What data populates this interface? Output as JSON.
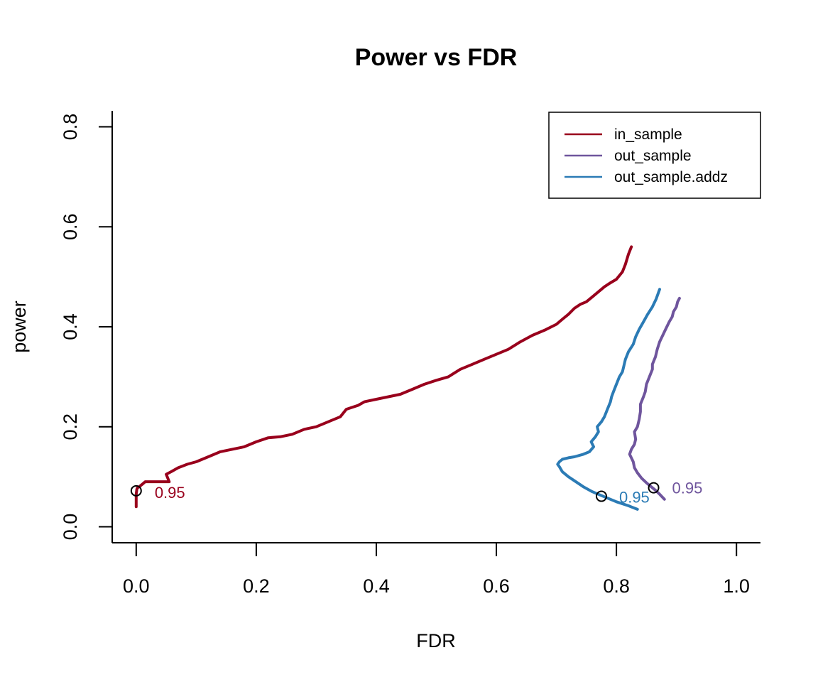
{
  "chart_data": {
    "type": "line",
    "title": "Power vs FDR",
    "xlabel": "FDR",
    "ylabel": "power",
    "xlim": [
      -0.04,
      1.04
    ],
    "ylim": [
      -0.032,
      0.832
    ],
    "xticks": [
      0.0,
      0.2,
      0.4,
      0.6,
      0.8,
      1.0
    ],
    "xtick_labels": [
      "0.0",
      "0.2",
      "0.4",
      "0.6",
      "0.8",
      "1.0"
    ],
    "yticks": [
      0.0,
      0.2,
      0.4,
      0.6,
      0.8
    ],
    "ytick_labels": [
      "0.0",
      "0.2",
      "0.4",
      "0.6",
      "0.8"
    ],
    "legend_position": "top-right",
    "series": [
      {
        "name": "in_sample",
        "color": "#99001C",
        "x": [
          0.0,
          0.0,
          0.001,
          0.002,
          0.005,
          0.01,
          0.015,
          0.02,
          0.03,
          0.045,
          0.055,
          0.05,
          0.058,
          0.07,
          0.085,
          0.1,
          0.12,
          0.14,
          0.16,
          0.18,
          0.2,
          0.22,
          0.24,
          0.26,
          0.28,
          0.3,
          0.32,
          0.34,
          0.35,
          0.37,
          0.38,
          0.4,
          0.42,
          0.44,
          0.46,
          0.48,
          0.5,
          0.52,
          0.54,
          0.56,
          0.58,
          0.6,
          0.62,
          0.64,
          0.66,
          0.68,
          0.7,
          0.71,
          0.72,
          0.73,
          0.74,
          0.75,
          0.76,
          0.77,
          0.78,
          0.79,
          0.8,
          0.81,
          0.815,
          0.82,
          0.825
        ],
        "y": [
          0.04,
          0.065,
          0.075,
          0.078,
          0.08,
          0.085,
          0.09,
          0.09,
          0.09,
          0.09,
          0.09,
          0.105,
          0.11,
          0.118,
          0.125,
          0.13,
          0.14,
          0.15,
          0.155,
          0.16,
          0.17,
          0.178,
          0.18,
          0.185,
          0.195,
          0.2,
          0.21,
          0.22,
          0.235,
          0.243,
          0.25,
          0.255,
          0.26,
          0.265,
          0.275,
          0.285,
          0.293,
          0.3,
          0.315,
          0.325,
          0.335,
          0.345,
          0.355,
          0.37,
          0.383,
          0.393,
          0.405,
          0.415,
          0.425,
          0.437,
          0.445,
          0.45,
          0.46,
          0.47,
          0.48,
          0.488,
          0.495,
          0.51,
          0.525,
          0.545,
          0.56
        ],
        "marker": {
          "x": 0.0,
          "y": 0.072,
          "label": "0.95"
        }
      },
      {
        "name": "out_sample",
        "color": "#6F559D",
        "x": [
          0.88,
          0.872,
          0.865,
          0.858,
          0.85,
          0.842,
          0.835,
          0.83,
          0.828,
          0.822,
          0.825,
          0.83,
          0.832,
          0.83,
          0.835,
          0.838,
          0.84,
          0.84,
          0.845,
          0.848,
          0.85,
          0.855,
          0.86,
          0.86,
          0.865,
          0.868,
          0.872,
          0.878,
          0.882,
          0.888,
          0.893,
          0.895,
          0.9,
          0.902,
          0.905
        ],
        "y": [
          0.055,
          0.065,
          0.073,
          0.08,
          0.088,
          0.097,
          0.108,
          0.118,
          0.13,
          0.145,
          0.155,
          0.165,
          0.175,
          0.19,
          0.2,
          0.215,
          0.23,
          0.245,
          0.26,
          0.27,
          0.285,
          0.3,
          0.315,
          0.325,
          0.34,
          0.355,
          0.37,
          0.385,
          0.395,
          0.41,
          0.42,
          0.43,
          0.44,
          0.45,
          0.457
        ],
        "marker": {
          "x": 0.862,
          "y": 0.078,
          "label": "0.95"
        }
      },
      {
        "name": "out_sample.addz",
        "color": "#2B7BB5",
        "x": [
          0.835,
          0.82,
          0.8,
          0.78,
          0.76,
          0.745,
          0.73,
          0.72,
          0.71,
          0.705,
          0.702,
          0.705,
          0.71,
          0.72,
          0.73,
          0.745,
          0.755,
          0.762,
          0.758,
          0.765,
          0.77,
          0.768,
          0.775,
          0.78,
          0.785,
          0.79,
          0.792,
          0.795,
          0.8,
          0.805,
          0.81,
          0.812,
          0.815,
          0.82,
          0.828,
          0.832,
          0.838,
          0.845,
          0.852,
          0.86,
          0.866,
          0.872
        ],
        "y": [
          0.035,
          0.042,
          0.05,
          0.06,
          0.07,
          0.08,
          0.092,
          0.1,
          0.11,
          0.12,
          0.125,
          0.13,
          0.135,
          0.138,
          0.14,
          0.145,
          0.15,
          0.16,
          0.17,
          0.18,
          0.19,
          0.2,
          0.21,
          0.22,
          0.235,
          0.25,
          0.26,
          0.27,
          0.285,
          0.3,
          0.31,
          0.32,
          0.335,
          0.35,
          0.365,
          0.38,
          0.395,
          0.41,
          0.425,
          0.44,
          0.455,
          0.475
        ],
        "marker": {
          "x": 0.775,
          "y": 0.061,
          "label": "0.95"
        }
      }
    ]
  }
}
